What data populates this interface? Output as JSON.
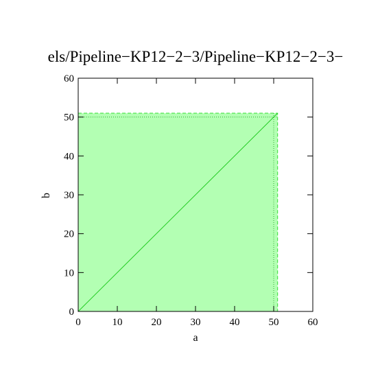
{
  "chart_data": {
    "type": "line",
    "title": "els/Pipeline−KP12−2−3/Pipeline−KP12−2−3−",
    "x_label": "a",
    "y_label": "b",
    "xlim": [
      0,
      60
    ],
    "ylim": [
      0,
      60
    ],
    "xticks": [
      0,
      10,
      20,
      30,
      40,
      50,
      60
    ],
    "yticks": [
      0,
      10,
      20,
      30,
      40,
      50,
      60
    ],
    "region": {
      "x": [
        0,
        51
      ],
      "y": [
        0,
        51
      ],
      "color": "#b3ffb3",
      "edge_color": "#33dd33"
    },
    "dotted": {
      "x": 50,
      "y": 50,
      "color": "#33aa33"
    },
    "x": [
      0,
      51
    ],
    "series": [
      {
        "values": [
          0,
          51
        ],
        "color": "#22cc22"
      }
    ]
  }
}
